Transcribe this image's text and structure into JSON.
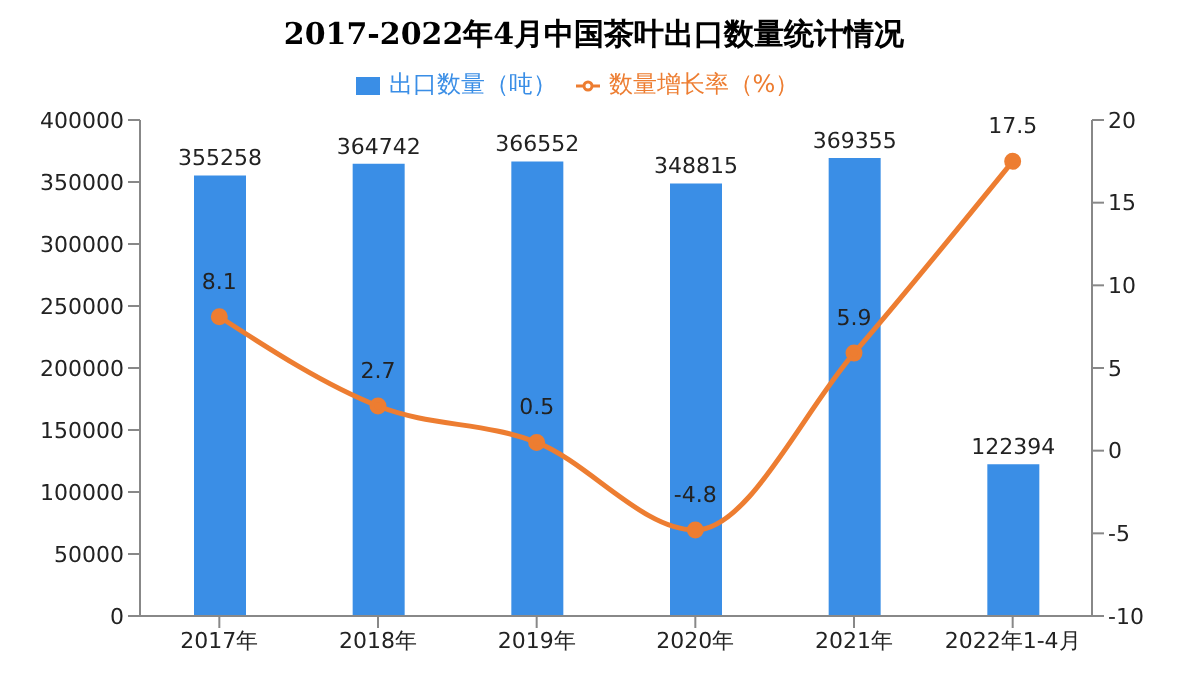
{
  "chart_data": {
    "type": "bar",
    "title": "2017-2022年4月中国茶叶出口数量统计情况",
    "categories": [
      "2017年",
      "2018年",
      "2019年",
      "2020年",
      "2021年",
      "2022年1-4月"
    ],
    "series": [
      {
        "name": "出口数量（吨）",
        "color": "#3a8ee6",
        "values": [
          355258,
          364742,
          366552,
          348815,
          369355,
          122394
        ]
      },
      {
        "type": "line",
        "name": "数量增长率（%）",
        "color": "#ed7d31",
        "axis": "y2",
        "values": [
          8.1,
          2.7,
          0.5,
          -4.8,
          5.9,
          17.5
        ]
      }
    ],
    "ylim": [
      0,
      400000
    ],
    "yticks": [
      0,
      50000,
      100000,
      150000,
      200000,
      250000,
      300000,
      350000,
      400000
    ],
    "y2lim": [
      -10,
      20
    ],
    "y2ticks": [
      -10,
      -5,
      0,
      5,
      10,
      15,
      20
    ],
    "legend": "top",
    "data_labels": true,
    "marker": "circle"
  }
}
